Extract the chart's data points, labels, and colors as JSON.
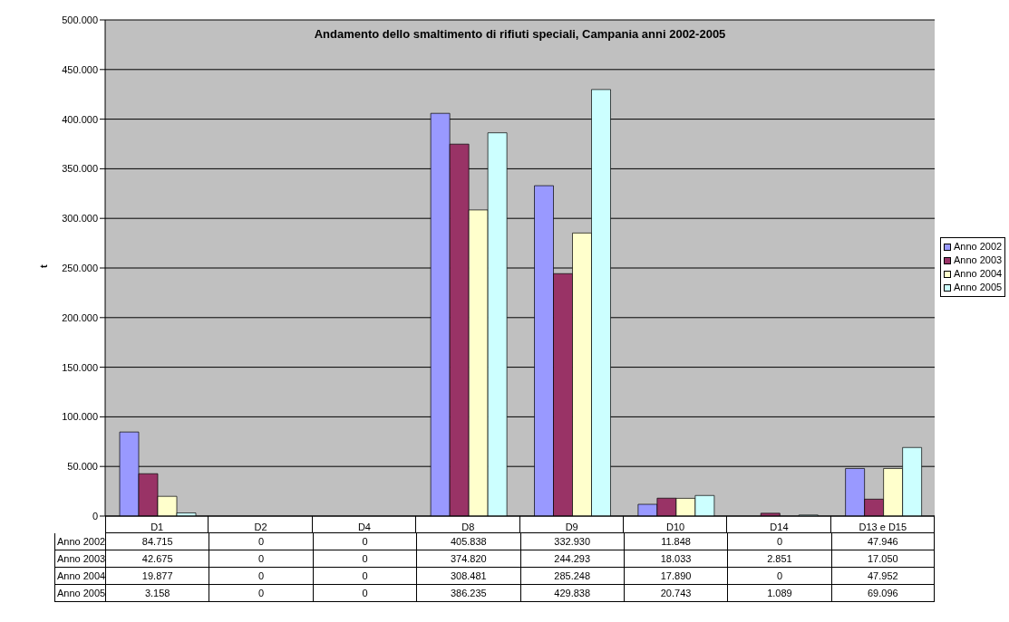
{
  "chart_data": {
    "type": "bar",
    "title": "Andamento dello smaltimento di rifiuti speciali, Campania anni 2002-2005",
    "ylabel": "t",
    "categories": [
      "D1",
      "D2",
      "D4",
      "D8",
      "D9",
      "D10",
      "D14",
      "D13 e D15"
    ],
    "series": [
      {
        "name": "Anno 2002",
        "color": "#9999ff",
        "values": [
          84715,
          0,
          0,
          405838,
          332930,
          11848,
          0,
          47946
        ],
        "value_labels": [
          "84.715",
          "0",
          "0",
          "405.838",
          "332.930",
          "11.848",
          "0",
          "47.946"
        ]
      },
      {
        "name": "Anno 2003",
        "color": "#993366",
        "values": [
          42675,
          0,
          0,
          374820,
          244293,
          18033,
          2851,
          17050
        ],
        "value_labels": [
          "42.675",
          "0",
          "0",
          "374.820",
          "244.293",
          "18.033",
          "2.851",
          "17.050"
        ]
      },
      {
        "name": "Anno 2004",
        "color": "#ffffcc",
        "values": [
          19877,
          0,
          0,
          308481,
          285248,
          17890,
          0,
          47952
        ],
        "value_labels": [
          "19.877",
          "0",
          "0",
          "308.481",
          "285.248",
          "17.890",
          "0",
          "47.952"
        ]
      },
      {
        "name": "Anno 2005",
        "color": "#ccffff",
        "values": [
          3158,
          0,
          0,
          386235,
          429838,
          20743,
          1089,
          69096
        ],
        "value_labels": [
          "3.158",
          "0",
          "0",
          "386.235",
          "429.838",
          "20.743",
          "1.089",
          "69.096"
        ]
      }
    ],
    "ylim": [
      0,
      500000
    ],
    "yticks": [
      0,
      {
        "value": 50000,
        "label": "50.000"
      },
      {
        "value": 100000,
        "label": "100.000"
      },
      {
        "value": 150000,
        "label": "150.000"
      },
      {
        "value": 200000,
        "label": "200.000"
      },
      {
        "value": 250000,
        "label": "250.000"
      },
      {
        "value": 300000,
        "label": "300.000"
      },
      {
        "value": 350000,
        "label": "350.000"
      },
      {
        "value": 400000,
        "label": "400.000"
      },
      {
        "value": 450000,
        "label": "450.000"
      },
      {
        "value": 500000,
        "label": "500.000"
      }
    ],
    "grid": "y",
    "legend": "right"
  }
}
